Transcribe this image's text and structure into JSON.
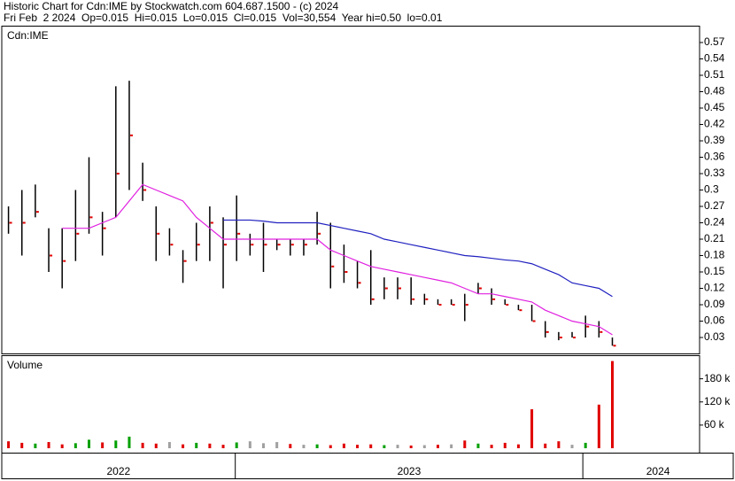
{
  "chart_data": {
    "type": "ohlc",
    "title": "Historic Chart for Cdn:IME by Stockwatch.com 604.687.1500 - (c) 2024",
    "subtitle": "Fri Feb  2 2024  Op=0.015  Hi=0.015  Lo=0.015  Cl=0.015  Vol=30,554  Year hi=0.50  lo=0.01",
    "panel_label": "Cdn:IME",
    "x": [
      0,
      1,
      2,
      3,
      4,
      5,
      6,
      7,
      8,
      9,
      10,
      11,
      12,
      13,
      14,
      15,
      16,
      17,
      18,
      19,
      20,
      21,
      22,
      23,
      24,
      25,
      26,
      27,
      28,
      29,
      30,
      31,
      32,
      33,
      34,
      35,
      36,
      37,
      38,
      39,
      40,
      41,
      42,
      43,
      44,
      45
    ],
    "xlim": [
      -0.5,
      51.5
    ],
    "years": [
      {
        "value": -0.5,
        "label": "2022"
      },
      {
        "value": 16.9,
        "label": "2023"
      },
      {
        "value": 42.8,
        "label": "2024"
      }
    ],
    "high": [
      0.27,
      0.3,
      0.31,
      0.23,
      0.23,
      0.3,
      0.36,
      0.26,
      0.49,
      0.5,
      0.35,
      0.27,
      0.23,
      0.19,
      0.24,
      0.27,
      0.25,
      0.29,
      0.22,
      0.24,
      0.21,
      0.21,
      0.21,
      0.26,
      0.24,
      0.2,
      0.17,
      0.19,
      0.14,
      0.14,
      0.14,
      0.11,
      0.1,
      0.1,
      0.11,
      0.13,
      0.12,
      0.1,
      0.09,
      0.09,
      0.06,
      0.04,
      0.04,
      0.07,
      0.06,
      0.03
    ],
    "low": [
      0.22,
      0.18,
      0.25,
      0.15,
      0.12,
      0.17,
      0.22,
      0.18,
      0.25,
      0.3,
      0.28,
      0.17,
      0.18,
      0.13,
      0.17,
      0.17,
      0.12,
      0.17,
      0.18,
      0.15,
      0.19,
      0.18,
      0.18,
      0.2,
      0.12,
      0.13,
      0.12,
      0.09,
      0.1,
      0.1,
      0.09,
      0.09,
      0.09,
      0.09,
      0.06,
      0.11,
      0.09,
      0.09,
      0.08,
      0.06,
      0.03,
      0.025,
      0.03,
      0.03,
      0.03,
      0.015
    ],
    "close": [
      0.24,
      0.24,
      0.26,
      0.18,
      0.17,
      0.22,
      0.25,
      0.23,
      0.33,
      0.4,
      0.3,
      0.22,
      0.2,
      0.17,
      0.2,
      0.24,
      0.2,
      0.22,
      0.2,
      0.2,
      0.2,
      0.2,
      0.2,
      0.22,
      0.16,
      0.15,
      0.13,
      0.1,
      0.12,
      0.12,
      0.1,
      0.1,
      0.09,
      0.09,
      0.09,
      0.12,
      0.1,
      0.09,
      0.08,
      0.06,
      0.04,
      0.03,
      0.03,
      0.05,
      0.04,
      0.015
    ],
    "bar_color": "#000000",
    "close_color": "#e00000",
    "series": [
      {
        "color": "#e020e0",
        "values": [
          null,
          null,
          null,
          null,
          0.23,
          0.23,
          0.23,
          0.24,
          0.25,
          0.28,
          0.31,
          0.3,
          0.29,
          0.28,
          0.25,
          0.23,
          0.21,
          0.21,
          0.21,
          0.21,
          0.21,
          0.21,
          0.21,
          0.21,
          0.19,
          0.18,
          0.17,
          0.16,
          0.155,
          0.15,
          0.145,
          0.14,
          0.135,
          0.13,
          0.12,
          0.11,
          0.11,
          0.105,
          0.1,
          0.095,
          0.08,
          0.07,
          0.06,
          0.055,
          0.05,
          0.035
        ]
      },
      {
        "color": "#2020c0",
        "values": [
          null,
          null,
          null,
          null,
          null,
          null,
          null,
          null,
          null,
          null,
          null,
          null,
          null,
          null,
          null,
          null,
          0.245,
          0.245,
          0.245,
          0.243,
          0.24,
          0.24,
          0.24,
          0.24,
          0.235,
          0.23,
          0.225,
          0.22,
          0.21,
          0.205,
          0.2,
          0.195,
          0.19,
          0.185,
          0.18,
          0.178,
          0.175,
          0.172,
          0.17,
          0.165,
          0.155,
          0.145,
          0.13,
          0.125,
          0.12,
          0.105
        ]
      }
    ],
    "ylim": [
      0,
      0.6
    ],
    "yticks": [
      0.03,
      0.06,
      0.09,
      0.12,
      0.15,
      0.18,
      0.21,
      0.24,
      0.27,
      0.3,
      0.33,
      0.36,
      0.39,
      0.42,
      0.45,
      0.48,
      0.51,
      0.54,
      0.57
    ],
    "volume": {
      "label": "Volume",
      "values": [
        18000,
        14000,
        12000,
        16000,
        10000,
        13000,
        22000,
        15000,
        20000,
        30000,
        14000,
        12000,
        16000,
        10000,
        14000,
        12000,
        9000,
        15000,
        18000,
        13000,
        16000,
        11000,
        9000,
        10000,
        8000,
        12000,
        9000,
        10000,
        8000,
        9000,
        7000,
        8000,
        9000,
        10000,
        20000,
        12000,
        9000,
        14000,
        10000,
        101000,
        12000,
        18000,
        9000,
        14000,
        113000,
        226000
      ],
      "colors": [
        "#e00000",
        "#e00000",
        "#00a000",
        "#e00000",
        "#e00000",
        "#00a000",
        "#00a000",
        "#e00000",
        "#00a000",
        "#00a000",
        "#e00000",
        "#e00000",
        "#a0a0a0",
        "#e00000",
        "#00a000",
        "#e00000",
        "#e00000",
        "#00a000",
        "#a0a0a0",
        "#a0a0a0",
        "#a0a0a0",
        "#e00000",
        "#a0a0a0",
        "#00a000",
        "#e00000",
        "#e00000",
        "#e00000",
        "#e00000",
        "#00a000",
        "#a0a0a0",
        "#e00000",
        "#a0a0a0",
        "#e00000",
        "#a0a0a0",
        "#e00000",
        "#00a000",
        "#e00000",
        "#e00000",
        "#e00000",
        "#e00000",
        "#e00000",
        "#e00000",
        "#a0a0a0",
        "#00a000",
        "#e00000",
        "#e00000"
      ],
      "ylim": [
        0,
        240000
      ],
      "yticks": [
        {
          "value": 60000,
          "label": "60 k"
        },
        {
          "value": 120000,
          "label": "120 k"
        },
        {
          "value": 180000,
          "label": "180 k"
        }
      ]
    }
  }
}
